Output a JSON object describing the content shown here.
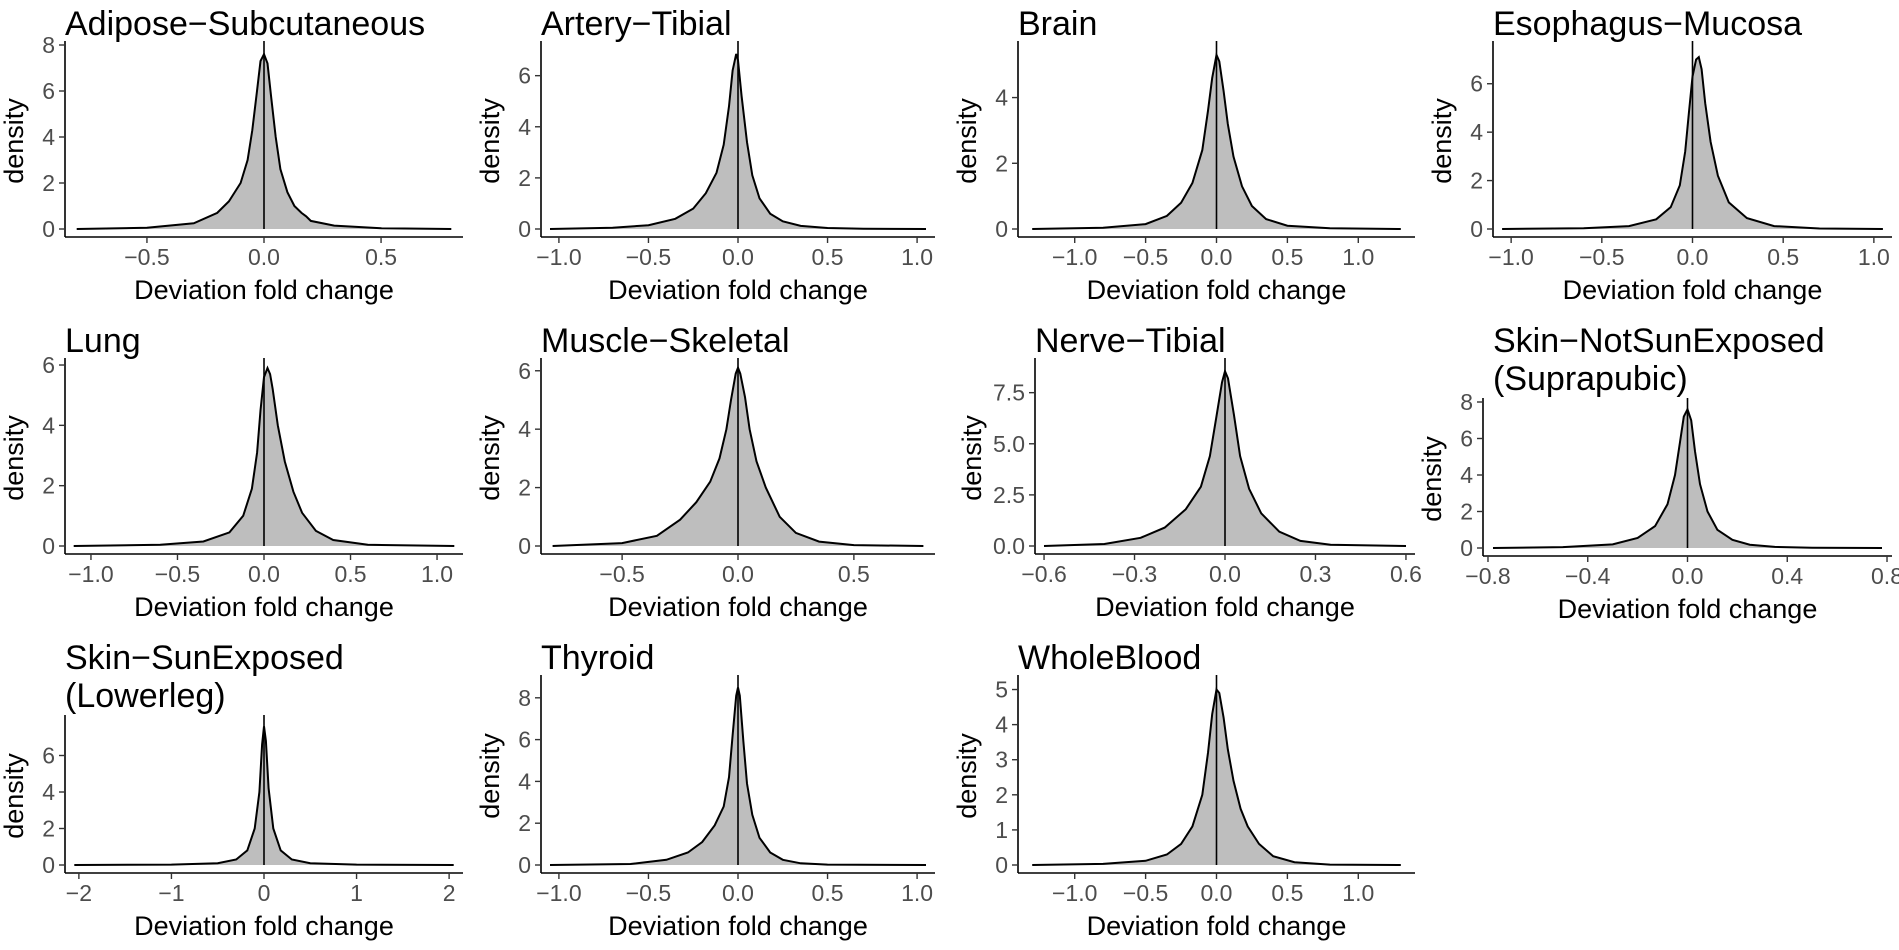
{
  "chart_data": [
    {
      "type": "area",
      "title": "Adipose−Subcutaneous",
      "xlabel": "Deviation fold change",
      "ylabel": "density",
      "xlim": [
        -0.85,
        0.85
      ],
      "ylim": [
        0,
        8
      ],
      "xticks": [
        -0.5,
        0.0,
        0.5
      ],
      "xtick_labels": [
        "−0.5",
        "0.0",
        "0.5"
      ],
      "yticks": [
        0,
        2,
        4,
        6,
        8
      ],
      "ytick_labels": [
        "0",
        "2",
        "4",
        "6",
        "8"
      ],
      "vline": 0,
      "series": [
        {
          "x": [
            -0.8,
            -0.5,
            -0.3,
            -0.2,
            -0.15,
            -0.1,
            -0.07,
            -0.05,
            -0.03,
            -0.015,
            0.0,
            0.015,
            0.03,
            0.05,
            0.07,
            0.1,
            0.13,
            0.16,
            0.18,
            0.2,
            0.3,
            0.5,
            0.8
          ],
          "y": [
            0.0,
            0.05,
            0.25,
            0.7,
            1.2,
            2.0,
            3.0,
            4.3,
            6.0,
            7.3,
            7.6,
            7.2,
            5.8,
            4.0,
            2.6,
            1.6,
            1.0,
            0.7,
            0.55,
            0.35,
            0.15,
            0.03,
            0.0
          ]
        }
      ]
    },
    {
      "type": "area",
      "title": "Artery−Tibial",
      "xlabel": "Deviation fold change",
      "ylabel": "density",
      "xlim": [
        -1.1,
        1.1
      ],
      "ylim": [
        0,
        7.2
      ],
      "xticks": [
        -1.0,
        -0.5,
        0.0,
        0.5,
        1.0
      ],
      "xtick_labels": [
        "−1.0",
        "−0.5",
        "0.0",
        "0.5",
        "1.0"
      ],
      "yticks": [
        0,
        2,
        4,
        6
      ],
      "ytick_labels": [
        "0",
        "2",
        "4",
        "6"
      ],
      "vline": 0,
      "series": [
        {
          "x": [
            -1.05,
            -0.7,
            -0.5,
            -0.35,
            -0.25,
            -0.18,
            -0.12,
            -0.08,
            -0.05,
            -0.03,
            -0.01,
            0.0,
            0.02,
            0.05,
            0.08,
            0.12,
            0.18,
            0.25,
            0.35,
            0.5,
            0.7,
            1.05
          ],
          "y": [
            0.0,
            0.05,
            0.15,
            0.4,
            0.8,
            1.4,
            2.2,
            3.3,
            4.8,
            6.2,
            6.85,
            6.6,
            5.2,
            3.4,
            2.1,
            1.2,
            0.6,
            0.3,
            0.12,
            0.04,
            0.01,
            0.0
          ]
        }
      ]
    },
    {
      "type": "area",
      "title": "Brain",
      "xlabel": "Deviation fold change",
      "ylabel": "density",
      "xlim": [
        -1.4,
        1.4
      ],
      "ylim": [
        0,
        5.6
      ],
      "xticks": [
        -1.0,
        -0.5,
        0.0,
        0.5,
        1.0
      ],
      "xtick_labels": [
        "−1.0",
        "−0.5",
        "0.0",
        "0.5",
        "1.0"
      ],
      "yticks": [
        0,
        2,
        4
      ],
      "ytick_labels": [
        "0",
        "2",
        "4"
      ],
      "vline": 0,
      "series": [
        {
          "x": [
            -1.3,
            -0.8,
            -0.5,
            -0.35,
            -0.25,
            -0.17,
            -0.1,
            -0.06,
            -0.03,
            0.0,
            0.02,
            0.05,
            0.08,
            0.12,
            0.18,
            0.25,
            0.35,
            0.5,
            0.8,
            1.3
          ],
          "y": [
            0.0,
            0.04,
            0.15,
            0.4,
            0.8,
            1.4,
            2.4,
            3.6,
            4.6,
            5.3,
            5.1,
            4.2,
            3.2,
            2.2,
            1.3,
            0.7,
            0.3,
            0.1,
            0.02,
            0.0
          ]
        }
      ]
    },
    {
      "type": "area",
      "title": "Esophagus−Mucosa",
      "xlabel": "Deviation fold change",
      "ylabel": "density",
      "xlim": [
        -1.1,
        1.1
      ],
      "ylim": [
        0,
        7.6
      ],
      "xticks": [
        -1.0,
        -0.5,
        0.0,
        0.5,
        1.0
      ],
      "xtick_labels": [
        "−1.0",
        "−0.5",
        "0.0",
        "0.5",
        "1.0"
      ],
      "yticks": [
        0,
        2,
        4,
        6
      ],
      "ytick_labels": [
        "0",
        "2",
        "4",
        "6"
      ],
      "vline": 0,
      "series": [
        {
          "x": [
            -1.05,
            -0.6,
            -0.35,
            -0.2,
            -0.12,
            -0.07,
            -0.04,
            -0.02,
            0.0,
            0.02,
            0.035,
            0.05,
            0.07,
            0.1,
            0.14,
            0.2,
            0.3,
            0.45,
            0.7,
            1.05
          ],
          "y": [
            0.0,
            0.03,
            0.12,
            0.4,
            0.9,
            1.8,
            3.2,
            4.8,
            6.3,
            7.0,
            7.1,
            6.6,
            5.2,
            3.6,
            2.2,
            1.1,
            0.45,
            0.12,
            0.02,
            0.0
          ]
        }
      ]
    },
    {
      "type": "area",
      "title": "Lung",
      "xlabel": "Deviation fold change",
      "ylabel": "density",
      "xlim": [
        -1.15,
        1.15
      ],
      "ylim": [
        0,
        6.1
      ],
      "xticks": [
        -1.0,
        -0.5,
        0.0,
        0.5,
        1.0
      ],
      "xtick_labels": [
        "−1.0",
        "−0.5",
        "0.0",
        "0.5",
        "1.0"
      ],
      "yticks": [
        0,
        2,
        4,
        6
      ],
      "ytick_labels": [
        "0",
        "2",
        "4",
        "6"
      ],
      "vline": 0,
      "series": [
        {
          "x": [
            -1.1,
            -0.6,
            -0.35,
            -0.2,
            -0.12,
            -0.07,
            -0.04,
            -0.02,
            0.0,
            0.02,
            0.035,
            0.05,
            0.08,
            0.12,
            0.17,
            0.22,
            0.3,
            0.4,
            0.6,
            1.1
          ],
          "y": [
            0.0,
            0.04,
            0.15,
            0.45,
            1.0,
            1.9,
            3.1,
            4.5,
            5.6,
            5.9,
            5.7,
            5.2,
            4.0,
            2.8,
            1.8,
            1.1,
            0.5,
            0.2,
            0.04,
            0.0
          ]
        }
      ]
    },
    {
      "type": "area",
      "title": "Muscle−Skeletal",
      "xlabel": "Deviation fold change",
      "ylabel": "density",
      "xlim": [
        -0.85,
        0.85
      ],
      "ylim": [
        0,
        6.3
      ],
      "xticks": [
        -0.5,
        0.0,
        0.5
      ],
      "xtick_labels": [
        "−0.5",
        "0.0",
        "0.5"
      ],
      "yticks": [
        0,
        2,
        4,
        6
      ],
      "ytick_labels": [
        "0",
        "2",
        "4",
        "6"
      ],
      "vline": 0,
      "series": [
        {
          "x": [
            -0.8,
            -0.5,
            -0.35,
            -0.25,
            -0.18,
            -0.12,
            -0.08,
            -0.05,
            -0.03,
            -0.01,
            0.0,
            0.01,
            0.03,
            0.05,
            0.08,
            0.12,
            0.18,
            0.25,
            0.35,
            0.5,
            0.8
          ],
          "y": [
            0.0,
            0.1,
            0.35,
            0.9,
            1.5,
            2.2,
            3.0,
            4.0,
            5.0,
            5.9,
            6.1,
            5.9,
            5.1,
            4.0,
            2.9,
            2.0,
            1.0,
            0.45,
            0.15,
            0.03,
            0.0
          ]
        }
      ]
    },
    {
      "type": "area",
      "title": "Nerve−Tibial",
      "xlabel": "Deviation fold change",
      "ylabel": "density",
      "xlim": [
        -0.63,
        0.63
      ],
      "ylim": [
        0,
        9.0
      ],
      "xticks": [
        -0.6,
        -0.3,
        0.0,
        0.3,
        0.6
      ],
      "xtick_labels": [
        "−0.6",
        "−0.3",
        "0.0",
        "0.3",
        "0.6"
      ],
      "yticks": [
        0,
        2.5,
        5.0,
        7.5
      ],
      "ytick_labels": [
        "0.0",
        "2.5",
        "5.0",
        "7.5"
      ],
      "vline": 0,
      "series": [
        {
          "x": [
            -0.6,
            -0.4,
            -0.28,
            -0.2,
            -0.13,
            -0.08,
            -0.05,
            -0.03,
            -0.01,
            0.0,
            0.01,
            0.03,
            0.05,
            0.08,
            0.12,
            0.18,
            0.25,
            0.35,
            0.6
          ],
          "y": [
            0.0,
            0.1,
            0.4,
            0.9,
            1.8,
            2.9,
            4.4,
            6.2,
            8.0,
            8.55,
            8.2,
            6.4,
            4.4,
            2.8,
            1.6,
            0.7,
            0.25,
            0.06,
            0.0
          ]
        }
      ]
    },
    {
      "type": "area",
      "title": "Skin−NotSunExposed\n(Suprapubic)",
      "xlabel": "Deviation fold change",
      "ylabel": "density",
      "xlim": [
        -0.82,
        0.82
      ],
      "ylim": [
        0,
        8
      ],
      "xticks": [
        -0.8,
        -0.4,
        0.0,
        0.4,
        0.8
      ],
      "xtick_labels": [
        "−0.8",
        "−0.4",
        "0.0",
        "0.4",
        "0.8"
      ],
      "yticks": [
        0,
        2,
        4,
        6,
        8
      ],
      "ytick_labels": [
        "0",
        "2",
        "4",
        "6",
        "8"
      ],
      "vline": 0,
      "series": [
        {
          "x": [
            -0.78,
            -0.5,
            -0.3,
            -0.2,
            -0.13,
            -0.08,
            -0.05,
            -0.03,
            -0.015,
            0.0,
            0.015,
            0.03,
            0.05,
            0.08,
            0.12,
            0.18,
            0.25,
            0.35,
            0.5,
            0.78
          ],
          "y": [
            0.0,
            0.05,
            0.2,
            0.55,
            1.2,
            2.4,
            4.0,
            5.8,
            7.2,
            7.6,
            7.0,
            5.3,
            3.5,
            2.0,
            1.0,
            0.45,
            0.18,
            0.06,
            0.01,
            0.0
          ]
        }
      ]
    },
    {
      "type": "area",
      "title": "Skin−SunExposed\n(Lowerleg)",
      "xlabel": "Deviation fold change",
      "ylabel": "density",
      "xlim": [
        -2.15,
        2.15
      ],
      "ylim": [
        0,
        8
      ],
      "xticks": [
        -2,
        -1,
        0,
        1,
        2
      ],
      "xtick_labels": [
        "−2",
        "−1",
        "0",
        "1",
        "2"
      ],
      "yticks": [
        0,
        2,
        4,
        6
      ],
      "ytick_labels": [
        "0",
        "2",
        "4",
        "6"
      ],
      "vline": 0,
      "series": [
        {
          "x": [
            -2.05,
            -1.0,
            -0.5,
            -0.3,
            -0.18,
            -0.1,
            -0.05,
            -0.02,
            0.0,
            0.02,
            0.05,
            0.1,
            0.18,
            0.3,
            0.5,
            1.0,
            2.05
          ],
          "y": [
            0.0,
            0.02,
            0.1,
            0.3,
            0.8,
            2.0,
            4.0,
            6.6,
            7.6,
            6.8,
            4.2,
            2.0,
            0.8,
            0.3,
            0.1,
            0.02,
            0.0
          ]
        }
      ]
    },
    {
      "type": "area",
      "title": "Thyroid",
      "xlabel": "Deviation fold change",
      "ylabel": "density",
      "xlim": [
        -1.1,
        1.1
      ],
      "ylim": [
        0,
        8.9
      ],
      "xticks": [
        -1.0,
        -0.5,
        0.0,
        0.5,
        1.0
      ],
      "xtick_labels": [
        "−1.0",
        "−0.5",
        "0.0",
        "0.5",
        "1.0"
      ],
      "yticks": [
        0,
        2,
        4,
        6,
        8
      ],
      "ytick_labels": [
        "0",
        "2",
        "4",
        "6",
        "8"
      ],
      "vline": 0,
      "series": [
        {
          "x": [
            -1.05,
            -0.6,
            -0.4,
            -0.28,
            -0.2,
            -0.13,
            -0.08,
            -0.05,
            -0.03,
            -0.01,
            0.0,
            0.01,
            0.03,
            0.05,
            0.08,
            0.12,
            0.18,
            0.25,
            0.35,
            0.5,
            1.05
          ],
          "y": [
            0.0,
            0.05,
            0.25,
            0.6,
            1.1,
            1.9,
            2.8,
            4.2,
            6.2,
            8.1,
            8.5,
            8.1,
            5.9,
            3.9,
            2.4,
            1.3,
            0.6,
            0.25,
            0.08,
            0.02,
            0.0
          ]
        }
      ]
    },
    {
      "type": "area",
      "title": "WholeBlood",
      "xlabel": "Deviation fold change",
      "ylabel": "density",
      "xlim": [
        -1.4,
        1.4
      ],
      "ylim": [
        0,
        5.3
      ],
      "xticks": [
        -1.0,
        -0.5,
        0.0,
        0.5,
        1.0
      ],
      "xtick_labels": [
        "−1.0",
        "−0.5",
        "0.0",
        "0.5",
        "1.0"
      ],
      "yticks": [
        0,
        1,
        2,
        3,
        4,
        5
      ],
      "ytick_labels": [
        "0",
        "1",
        "2",
        "3",
        "4",
        "5"
      ],
      "vline": 0,
      "series": [
        {
          "x": [
            -1.3,
            -0.8,
            -0.5,
            -0.35,
            -0.25,
            -0.17,
            -0.1,
            -0.06,
            -0.03,
            0.0,
            0.02,
            0.05,
            0.08,
            0.12,
            0.17,
            0.22,
            0.3,
            0.4,
            0.55,
            0.8,
            1.3
          ],
          "y": [
            0.0,
            0.03,
            0.12,
            0.3,
            0.6,
            1.1,
            2.0,
            3.2,
            4.3,
            5.0,
            4.9,
            4.2,
            3.3,
            2.4,
            1.6,
            1.1,
            0.6,
            0.25,
            0.08,
            0.01,
            0.0
          ]
        }
      ]
    }
  ]
}
